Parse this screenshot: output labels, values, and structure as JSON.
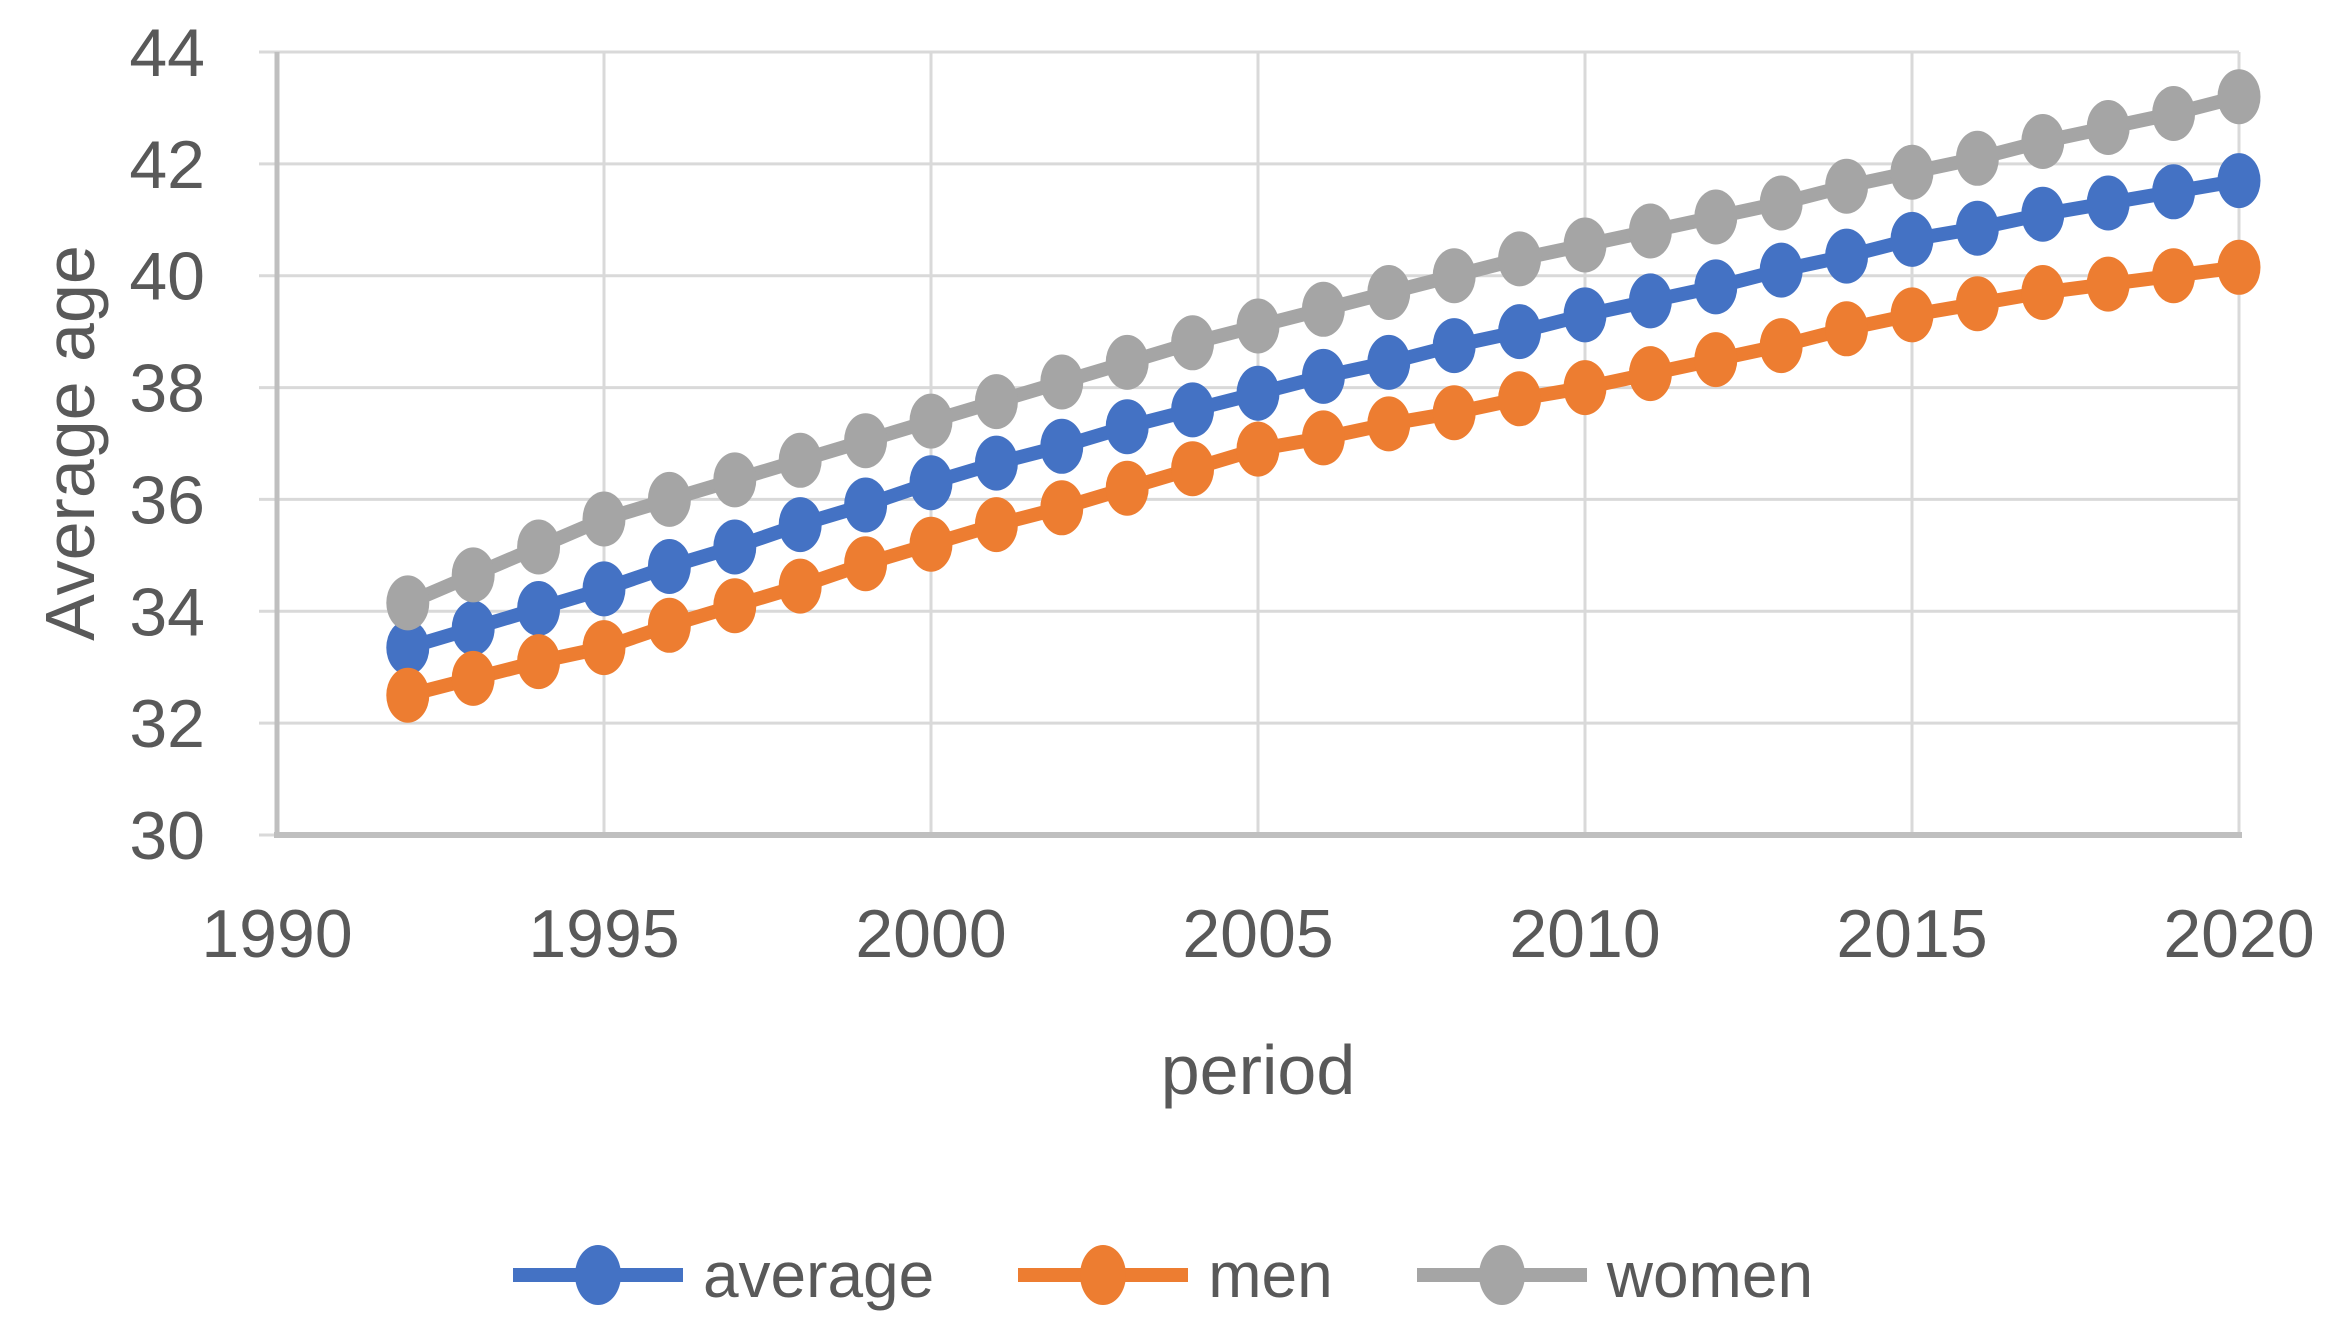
{
  "chart_data": {
    "type": "line",
    "title": "",
    "xlabel": "period",
    "ylabel": "Average age",
    "xlim": [
      1990,
      2020
    ],
    "ylim": [
      30,
      44
    ],
    "xticks": [
      1990,
      1995,
      2000,
      2005,
      2010,
      2015,
      2020
    ],
    "yticks": [
      30,
      32,
      34,
      36,
      38,
      40,
      42,
      44
    ],
    "grid": true,
    "legend_position": "bottom",
    "x": [
      1992,
      1993,
      1994,
      1995,
      1996,
      1997,
      1998,
      1999,
      2000,
      2001,
      2002,
      2003,
      2004,
      2005,
      2006,
      2007,
      2008,
      2009,
      2010,
      2011,
      2012,
      2013,
      2014,
      2015,
      2016,
      2017,
      2018,
      2019,
      2020
    ],
    "series": [
      {
        "name": "average",
        "color": "#4472C4",
        "values": [
          33.35,
          33.7,
          34.05,
          34.4,
          34.8,
          35.15,
          35.55,
          35.9,
          36.3,
          36.65,
          36.95,
          37.3,
          37.6,
          37.9,
          38.2,
          38.45,
          38.75,
          39.0,
          39.3,
          39.55,
          39.8,
          40.1,
          40.35,
          40.65,
          40.85,
          41.1,
          41.3,
          41.5,
          41.7
        ]
      },
      {
        "name": "men",
        "color": "#ED7D31",
        "values": [
          32.5,
          32.8,
          33.1,
          33.35,
          33.75,
          34.1,
          34.45,
          34.85,
          35.2,
          35.55,
          35.85,
          36.2,
          36.55,
          36.9,
          37.1,
          37.35,
          37.55,
          37.8,
          38.0,
          38.25,
          38.5,
          38.75,
          39.05,
          39.3,
          39.5,
          39.7,
          39.85,
          40.0,
          40.15
        ]
      },
      {
        "name": "women",
        "color": "#A5A5A5",
        "values": [
          34.15,
          34.65,
          35.15,
          35.65,
          36.0,
          36.35,
          36.7,
          37.05,
          37.4,
          37.75,
          38.1,
          38.45,
          38.8,
          39.1,
          39.4,
          39.7,
          40.0,
          40.3,
          40.55,
          40.8,
          41.05,
          41.3,
          41.6,
          41.85,
          42.1,
          42.4,
          42.65,
          42.9,
          43.2
        ]
      }
    ],
    "palette": {
      "text_color": "#595959",
      "gridline_color": "#D9D9D9",
      "axis_line_color": "#BFBFBF",
      "background": "#FFFFFF"
    }
  }
}
